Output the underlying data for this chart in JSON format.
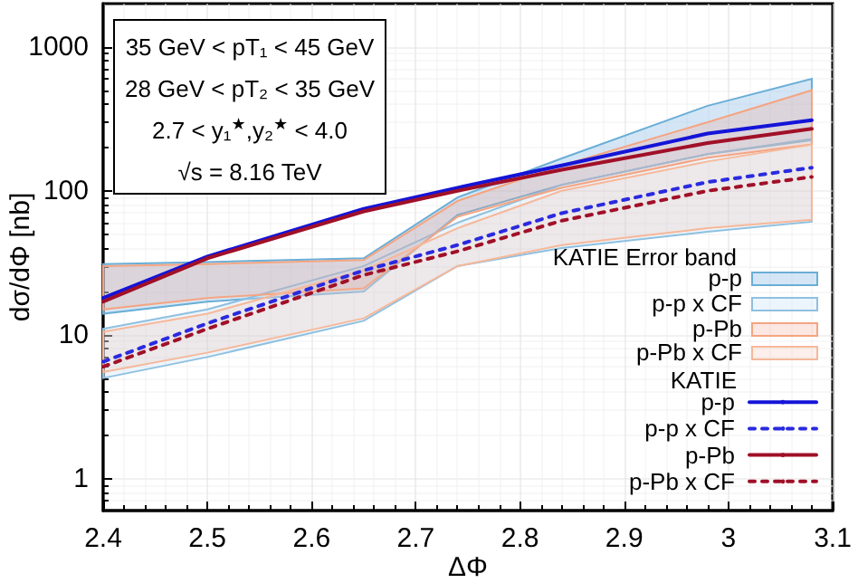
{
  "chart_data": {
    "type": "line",
    "xlabel": "ΔΦ",
    "ylabel": "dσ/dΦ [nb]",
    "log": "y",
    "grid": true,
    "legend": "bottom right",
    "legend_title": "KATIE",
    "xlim": [
      2.4,
      3.1
    ],
    "xticks": [
      2.4,
      2.5,
      2.6,
      2.7,
      2.8,
      2.9,
      {
        "value": 3.0,
        "label": "3"
      },
      3.1
    ],
    "ylim": [
      0.6,
      2000
    ],
    "yticks": [
      1,
      10,
      100,
      1000
    ],
    "annotations": [
      "35 GeV < pT₁ < 45 GeV",
      "28 GeV < pT₂ < 35 GeV",
      "2.7 < y₁$^{★}$,y₂$^{★}$ < 4.0",
      "√s = 8.16 TeV",
      "KATIE Error band"
    ],
    "x": [
      2.4,
      2.5,
      2.65,
      2.74,
      2.84,
      2.98,
      3.08
    ],
    "series": [
      {
        "name": "p-p",
        "color": "#1414d8",
        "line_style": "solid",
        "values": [
          18,
          35,
          75,
          105,
          150,
          250,
          310
        ],
        "lower": [
          14,
          17,
          20,
          68,
          110,
          180,
          225
        ],
        "upper": [
          31,
          32,
          34,
          90,
          168,
          390,
          600
        ]
      },
      {
        "name": "p-p x CF",
        "color": "#2a2ae0",
        "line_style": "dotted",
        "values": [
          6.5,
          12,
          28,
          42,
          70,
          115,
          145
        ],
        "lower": [
          5,
          7,
          12.5,
          30,
          40,
          52,
          61
        ],
        "upper": [
          11,
          15,
          30,
          60,
          110,
          180,
          230
        ]
      },
      {
        "name": "p-Pb",
        "color": "#a01028",
        "line_style": "solid",
        "values": [
          17,
          34,
          72,
          100,
          140,
          215,
          270
        ],
        "lower": [
          15,
          18,
          21,
          66,
          105,
          170,
          210
        ],
        "upper": [
          30,
          31,
          33,
          85,
          150,
          300,
          500
        ]
      },
      {
        "name": "p-Pb x CF",
        "color": "#a01028",
        "line_style": "dotted",
        "values": [
          6,
          11,
          26,
          38,
          62,
          100,
          125
        ],
        "lower": [
          5.5,
          7.5,
          13,
          30,
          42,
          55,
          63
        ],
        "upper": [
          10.5,
          14,
          28,
          55,
          100,
          160,
          210
        ]
      }
    ]
  }
}
